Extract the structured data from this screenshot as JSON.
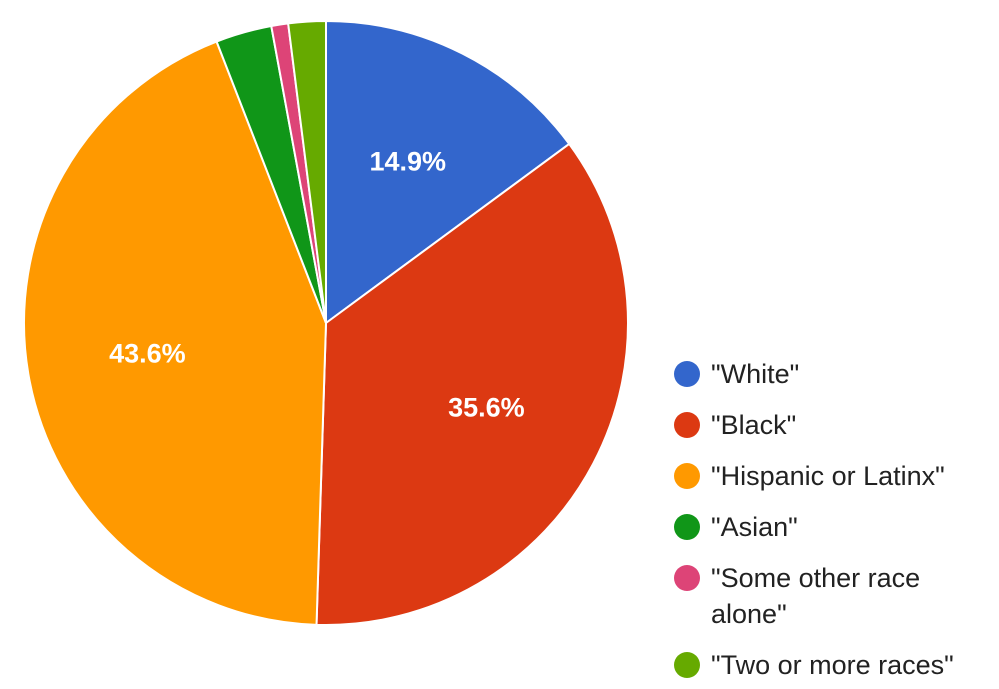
{
  "chart_data": {
    "type": "pie",
    "title": "",
    "legend_position": "right",
    "slices": [
      {
        "label": "\"White\"",
        "value": 14.9,
        "display": "14.9%",
        "color": "#3366cc"
      },
      {
        "label": "\"Black\"",
        "value": 35.6,
        "display": "35.6%",
        "color": "#dc3912"
      },
      {
        "label": "\"Hispanic or Latinx\"",
        "value": 43.6,
        "display": "43.6%",
        "color": "#ff9900"
      },
      {
        "label": "\"Asian\"",
        "value": 3.0,
        "display": "",
        "color": "#109618"
      },
      {
        "label": "\"Some other race alone\"",
        "value": 0.9,
        "display": "",
        "color": "#dd4477"
      },
      {
        "label": "\"Two or more races\"",
        "value": 2.0,
        "display": "",
        "color": "#66aa00"
      }
    ]
  }
}
